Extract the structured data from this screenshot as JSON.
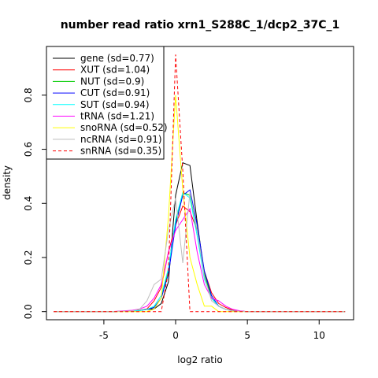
{
  "chart_data": {
    "type": "line",
    "title": "number read ratio xrn1_S288C_1/dcp2_37C_1",
    "xlabel": "log2 ratio",
    "ylabel": "density",
    "xlim": [
      -9.0,
      12.4
    ],
    "ylim": [
      -0.03,
      0.98
    ],
    "x_ticks": [
      -5,
      0,
      5,
      10
    ],
    "y_ticks": [
      0.0,
      0.2,
      0.4,
      0.6,
      0.8
    ],
    "x_tick_labels": [
      "-5",
      "0",
      "5",
      "10"
    ],
    "y_tick_labels": [
      "0.0",
      "0.2",
      "0.4",
      "0.6",
      "0.8"
    ],
    "grid": false,
    "legend_position": "top-left",
    "series": [
      {
        "name": "gene (sd=0.77)",
        "color": "#000000",
        "dash": "solid",
        "x": [
          -8.5,
          -4.5,
          -3.0,
          -2.5,
          -2.0,
          -1.5,
          -1.0,
          -0.5,
          0.0,
          0.5,
          1.0,
          1.5,
          2.0,
          2.5,
          3.0,
          3.5,
          4.0,
          4.5,
          5.0,
          11.8
        ],
        "y": [
          0.0,
          0.0,
          0.003,
          0.005,
          0.008,
          0.01,
          0.03,
          0.11,
          0.43,
          0.55,
          0.54,
          0.33,
          0.14,
          0.05,
          0.02,
          0.008,
          0.004,
          0.002,
          0.0,
          0.0
        ]
      },
      {
        "name": "XUT (sd=1.04)",
        "color": "#ff0000",
        "dash": "solid",
        "x": [
          -8.5,
          -4.5,
          -3.0,
          -2.5,
          -2.0,
          -1.5,
          -1.0,
          -0.5,
          0.0,
          0.5,
          1.0,
          1.5,
          2.0,
          2.5,
          3.0,
          3.5,
          4.0,
          4.5,
          5.0,
          11.8
        ],
        "y": [
          0.0,
          0.0,
          0.002,
          0.005,
          0.01,
          0.04,
          0.09,
          0.22,
          0.32,
          0.39,
          0.37,
          0.3,
          0.15,
          0.07,
          0.03,
          0.015,
          0.005,
          0.002,
          0.0,
          0.0
        ]
      },
      {
        "name": "NUT (sd=0.9)",
        "color": "#00cc00",
        "dash": "solid",
        "x": [
          -8.5,
          -4.5,
          -3.0,
          -2.5,
          -2.0,
          -1.5,
          -1.0,
          -0.5,
          0.0,
          0.5,
          1.0,
          1.5,
          2.0,
          2.5,
          3.0,
          3.5,
          4.0,
          4.5,
          5.0,
          11.8
        ],
        "y": [
          0.0,
          0.0,
          0.002,
          0.004,
          0.008,
          0.015,
          0.05,
          0.15,
          0.33,
          0.44,
          0.43,
          0.3,
          0.14,
          0.05,
          0.02,
          0.008,
          0.003,
          0.001,
          0.0,
          0.0
        ]
      },
      {
        "name": "CUT (sd=0.91)",
        "color": "#0000ff",
        "dash": "solid",
        "x": [
          -8.5,
          -4.5,
          -3.0,
          -2.5,
          -2.0,
          -1.5,
          -1.0,
          -0.5,
          0.0,
          0.5,
          1.0,
          1.5,
          2.0,
          2.5,
          3.0,
          3.5,
          4.0,
          4.5,
          5.0,
          11.8
        ],
        "y": [
          0.0,
          0.0,
          0.002,
          0.004,
          0.008,
          0.015,
          0.05,
          0.14,
          0.32,
          0.43,
          0.45,
          0.32,
          0.15,
          0.06,
          0.02,
          0.008,
          0.003,
          0.001,
          0.0,
          0.0
        ]
      },
      {
        "name": "SUT (sd=0.94)",
        "color": "#00ffff",
        "dash": "solid",
        "x": [
          -8.5,
          -4.5,
          -3.0,
          -2.5,
          -2.0,
          -1.5,
          -1.0,
          -0.5,
          0.0,
          0.5,
          1.0,
          1.5,
          2.0,
          2.5,
          3.0,
          3.5,
          4.0,
          4.5,
          5.0,
          11.8
        ],
        "y": [
          0.0,
          0.0,
          0.002,
          0.004,
          0.008,
          0.02,
          0.06,
          0.16,
          0.34,
          0.44,
          0.42,
          0.28,
          0.12,
          0.05,
          0.02,
          0.008,
          0.003,
          0.001,
          0.0,
          0.0
        ]
      },
      {
        "name": "tRNA (sd=1.21)",
        "color": "#ff00ff",
        "dash": "solid",
        "x": [
          -8.5,
          -4.5,
          -3.0,
          -2.5,
          -2.0,
          -1.5,
          -1.0,
          -0.5,
          0.0,
          0.5,
          1.0,
          1.5,
          2.0,
          2.5,
          3.0,
          3.5,
          4.0,
          4.5,
          5.0,
          11.8
        ],
        "y": [
          0.0,
          0.0,
          0.005,
          0.01,
          0.02,
          0.05,
          0.1,
          0.22,
          0.3,
          0.34,
          0.38,
          0.22,
          0.1,
          0.05,
          0.04,
          0.02,
          0.008,
          0.003,
          0.0,
          0.0
        ]
      },
      {
        "name": "snoRNA (sd=0.52)",
        "color": "#ffff00",
        "dash": "solid",
        "x": [
          -8.5,
          -3.0,
          -2.0,
          -1.5,
          -1.0,
          -0.5,
          0.0,
          0.5,
          1.0,
          1.5,
          2.0,
          2.5,
          3.0,
          11.8
        ],
        "y": [
          0.0,
          0.0,
          0.0,
          0.01,
          0.05,
          0.35,
          0.8,
          0.45,
          0.2,
          0.1,
          0.02,
          0.02,
          0.0,
          0.0
        ]
      },
      {
        "name": "ncRNA (sd=0.91)",
        "color": "#bebebe",
        "dash": "solid",
        "x": [
          -8.5,
          -4.5,
          -3.0,
          -2.5,
          -2.0,
          -1.5,
          -1.0,
          -0.5,
          0.0,
          0.5,
          1.0,
          1.5,
          2.0,
          2.5,
          3.0,
          3.5,
          4.0,
          4.5,
          5.0,
          11.8
        ],
        "y": [
          0.0,
          0.0,
          0.003,
          0.01,
          0.04,
          0.1,
          0.12,
          0.3,
          0.42,
          0.18,
          0.44,
          0.3,
          0.13,
          0.04,
          0.02,
          0.008,
          0.003,
          0.001,
          0.0,
          0.0
        ]
      },
      {
        "name": "snRNA (sd=0.35)",
        "color": "#ff0000",
        "dash": "dashed",
        "x": [
          -8.5,
          -1.0,
          -0.5,
          0.0,
          0.5,
          1.0,
          1.5,
          11.8
        ],
        "y": [
          0.0,
          0.0,
          0.15,
          0.95,
          0.52,
          0.0,
          0.0,
          0.0
        ]
      }
    ]
  }
}
